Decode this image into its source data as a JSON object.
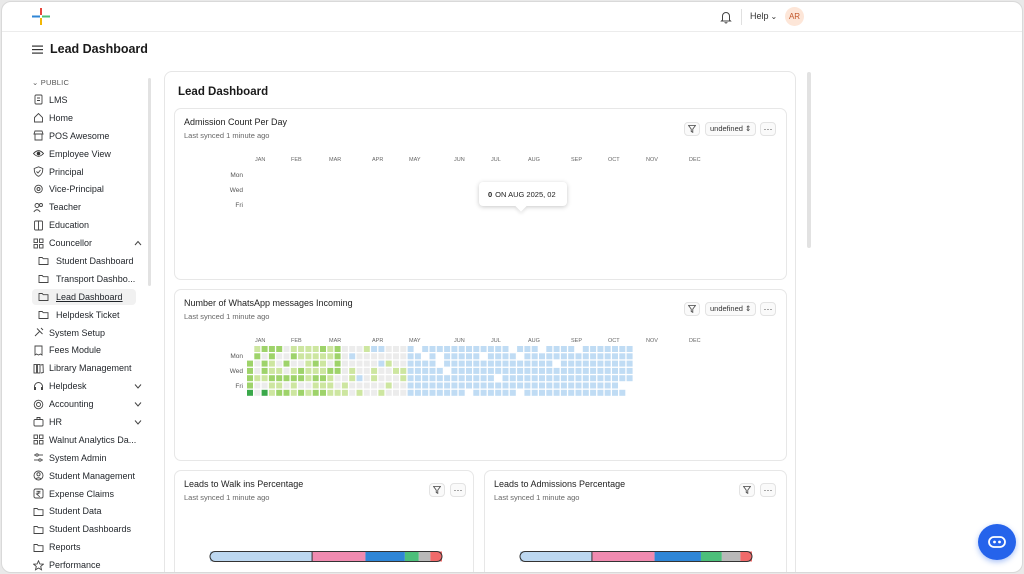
{
  "topbar": {
    "help_label": "Help",
    "avatar_initials": "AR"
  },
  "page": {
    "title": "Lead Dashboard"
  },
  "sidebar": {
    "section_label": "PUBLIC",
    "items": [
      {
        "label": "LMS",
        "icon": "doc-icon",
        "sub": false
      },
      {
        "label": "Home",
        "icon": "home-icon",
        "sub": false
      },
      {
        "label": "POS Awesome",
        "icon": "store-icon",
        "sub": false
      },
      {
        "label": "Employee View",
        "icon": "eye-icon",
        "sub": false
      },
      {
        "label": "Principal",
        "icon": "shield-icon",
        "sub": false
      },
      {
        "label": "Vice-Principal",
        "icon": "badge-icon",
        "sub": false
      },
      {
        "label": "Teacher",
        "icon": "users-icon",
        "sub": false
      },
      {
        "label": "Education",
        "icon": "book-icon",
        "sub": false
      },
      {
        "label": "Councellor",
        "icon": "grid-icon",
        "sub": false,
        "caret": "up"
      },
      {
        "label": "Student Dashboard",
        "icon": "folder-icon",
        "sub": true
      },
      {
        "label": "Transport Dashbo...",
        "icon": "folder-icon",
        "sub": true
      },
      {
        "label": "Lead Dashboard",
        "icon": "folder-icon",
        "sub": true,
        "active": true
      },
      {
        "label": "Helpdesk Ticket",
        "icon": "folder-icon",
        "sub": true
      },
      {
        "label": "System Setup",
        "icon": "tools-icon",
        "sub": false
      },
      {
        "label": "Fees Module",
        "icon": "receipt-icon",
        "sub": false
      },
      {
        "label": "Library Management",
        "icon": "library-icon",
        "sub": false
      },
      {
        "label": "Helpdesk",
        "icon": "headset-icon",
        "sub": false,
        "caret": "down"
      },
      {
        "label": "Accounting",
        "icon": "coin-icon",
        "sub": false,
        "caret": "down"
      },
      {
        "label": "HR",
        "icon": "briefcase-icon",
        "sub": false,
        "caret": "down"
      },
      {
        "label": "Walnut Analytics Da...",
        "icon": "grid-icon",
        "sub": false
      },
      {
        "label": "System Admin",
        "icon": "sliders-icon",
        "sub": false
      },
      {
        "label": "Student Management",
        "icon": "user-circle-icon",
        "sub": false
      },
      {
        "label": "Expense Claims",
        "icon": "rupee-icon",
        "sub": false
      },
      {
        "label": "Student Data",
        "icon": "folder-icon",
        "sub": false
      },
      {
        "label": "Student Dashboards",
        "icon": "folder-icon",
        "sub": false
      },
      {
        "label": "Reports",
        "icon": "folder-icon",
        "sub": false
      },
      {
        "label": "Performance",
        "icon": "star-icon",
        "sub": false
      }
    ]
  },
  "dashboard": {
    "title": "Lead Dashboard",
    "cards": [
      {
        "title": "Admission Count Per Day",
        "synced": "Last synced 1 minute ago",
        "select_label": "undefined",
        "tooltip": {
          "value": "0",
          "text": "ON AUG 2025, 02"
        }
      },
      {
        "title": "Number of WhatsApp messages Incoming",
        "synced": "Last synced 1 minute ago",
        "select_label": "undefined"
      },
      {
        "title": "Leads to Walk ins Percentage",
        "synced": "Last synced 1 minute ago"
      },
      {
        "title": "Leads to Admissions Percentage",
        "synced": "Last synced 1 minute ago"
      }
    ]
  },
  "heatmap": {
    "months": [
      "JAN",
      "FEB",
      "MAR",
      "APR",
      "MAY",
      "JUN",
      "JUL",
      "AUG",
      "SEP",
      "OCT",
      "NOV",
      "DEC"
    ],
    "weekday_labels": [
      "Mon",
      "Wed",
      "Fri"
    ]
  },
  "progress_bars": {
    "walkins": [
      {
        "color": "#bcd7f0",
        "fraction": 0.44
      },
      {
        "color": "#f08bb0",
        "fraction": 0.23
      },
      {
        "color": "#2f86d6",
        "fraction": 0.17
      },
      {
        "color": "#4cbf7a",
        "fraction": 0.06
      },
      {
        "color": "#b9b9b9",
        "fraction": 0.05
      },
      {
        "color": "#f06a6a",
        "fraction": 0.05
      }
    ],
    "admissions": [
      {
        "color": "#bcd7f0",
        "fraction": 0.31
      },
      {
        "color": "#f08bb0",
        "fraction": 0.27
      },
      {
        "color": "#2f86d6",
        "fraction": 0.2
      },
      {
        "color": "#4cbf7a",
        "fraction": 0.09
      },
      {
        "color": "#b9b9b9",
        "fraction": 0.08
      },
      {
        "color": "#f06a6a",
        "fraction": 0.05
      }
    ]
  },
  "colors": {
    "accent": "#2563eb",
    "heat_empty": "#ececec",
    "heat_green_light": "#cde6a0",
    "heat_green_mid": "#9ed36a",
    "heat_green_dark": "#3aa84a",
    "heat_blue": "#c0dcf4"
  }
}
